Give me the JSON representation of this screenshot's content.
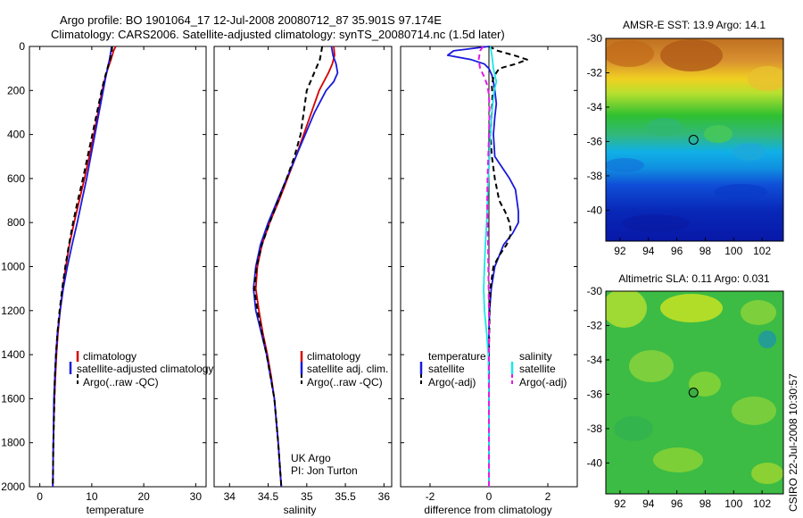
{
  "page": {
    "title_line1": "Argo profile: BO 1901064_17 12-Jul-2008 20080712_87 35.901S 97.174E",
    "title_line2": "Climatology: CARS2006. Satellite-adjusted climatology: synTS_20080714.nc (1.5d later)",
    "credit": "CSIRO 22-Jul-2008 10:30:57",
    "colors": {
      "red": "#d40000",
      "blue": "#1a1adb",
      "black": "#000000",
      "cyan": "#19e6e6",
      "magenta": "#e619e6"
    }
  },
  "chart_data": [
    {
      "type": "line",
      "panel": "temperature",
      "xlabel": "temperature",
      "xlim": [
        -2,
        32
      ],
      "ylim": [
        2000,
        0
      ],
      "xticks": [
        0,
        10,
        20,
        30
      ],
      "yticks": [
        0,
        200,
        400,
        600,
        800,
        1000,
        1200,
        1400,
        1600,
        1800,
        2000
      ],
      "legend": [
        "climatology",
        "satellite-adjusted climatology",
        "Argo(..raw -QC)"
      ],
      "series": [
        {
          "name": "climatology",
          "color": "#d40000",
          "dash": "",
          "depth": [
            0,
            20,
            60,
            100,
            150,
            200,
            300,
            400,
            500,
            600,
            700,
            800,
            900,
            1000,
            1100,
            1200,
            1300,
            1400,
            1500,
            1600,
            1800,
            2000
          ],
          "values": [
            14.6,
            14.2,
            13.7,
            13.1,
            12.5,
            12.0,
            11.2,
            10.4,
            9.5,
            8.6,
            7.6,
            6.6,
            5.7,
            5.0,
            4.4,
            3.9,
            3.5,
            3.2,
            3.0,
            2.8,
            2.6,
            2.5
          ]
        },
        {
          "name": "satellite-adjusted climatology",
          "color": "#1a1adb",
          "dash": "",
          "depth": [
            0,
            20,
            60,
            100,
            150,
            200,
            300,
            400,
            500,
            600,
            700,
            800,
            900,
            1000,
            1100,
            1200,
            1300,
            1400,
            1500,
            1600,
            1800,
            2000
          ],
          "values": [
            13.8,
            13.7,
            13.4,
            13.0,
            12.6,
            12.2,
            11.4,
            10.6,
            9.8,
            9.0,
            8.1,
            7.2,
            6.2,
            5.3,
            4.5,
            3.9,
            3.4,
            3.1,
            2.9,
            2.7,
            2.6,
            2.5
          ]
        },
        {
          "name": "Argo(..raw -QC)",
          "color": "#000000",
          "dash": "6,4",
          "depth": [
            0,
            10,
            30,
            60,
            100,
            150,
            200,
            300,
            400,
            500,
            600,
            700,
            800,
            900,
            1000,
            1100,
            1200,
            1300,
            1400,
            1500,
            1600,
            1800,
            2000
          ],
          "values": [
            13.9,
            13.9,
            13.8,
            13.5,
            13.0,
            12.4,
            11.9,
            11.0,
            10.1,
            9.2,
            8.3,
            7.3,
            6.4,
            5.6,
            4.9,
            4.3,
            3.8,
            3.4,
            3.1,
            2.9,
            2.8,
            2.6,
            2.5
          ]
        }
      ]
    },
    {
      "type": "line",
      "panel": "salinity",
      "xlabel": "salinity",
      "xlim": [
        33.8,
        36.1
      ],
      "ylim": [
        2000,
        0
      ],
      "xticks": [
        34,
        34.5,
        35,
        35.5,
        36
      ],
      "yticks": [
        0,
        200,
        400,
        600,
        800,
        1000,
        1200,
        1400,
        1600,
        1800,
        2000
      ],
      "legend": [
        "climatology",
        "satellite adj. clim.",
        "Argo(..raw -QC)"
      ],
      "series": [
        {
          "name": "climatology",
          "color": "#d40000",
          "dash": "",
          "depth": [
            0,
            40,
            80,
            120,
            160,
            200,
            300,
            400,
            500,
            600,
            700,
            800,
            900,
            1000,
            1100,
            1200,
            1300,
            1400,
            1500,
            1600,
            1800,
            2000
          ],
          "values": [
            35.35,
            35.36,
            35.33,
            35.28,
            35.22,
            35.16,
            35.06,
            34.96,
            34.86,
            34.75,
            34.64,
            34.52,
            34.42,
            34.36,
            34.34,
            34.38,
            34.43,
            34.49,
            34.54,
            34.58,
            34.63,
            34.67
          ]
        },
        {
          "name": "satellite adj. clim.",
          "color": "#1a1adb",
          "dash": "",
          "depth": [
            0,
            40,
            80,
            120,
            160,
            200,
            300,
            400,
            500,
            600,
            700,
            800,
            900,
            1000,
            1100,
            1200,
            1300,
            1400,
            1500,
            1600,
            1800,
            2000
          ],
          "values": [
            35.32,
            35.34,
            35.38,
            35.4,
            35.35,
            35.25,
            35.1,
            34.98,
            34.86,
            34.74,
            34.62,
            34.5,
            34.4,
            34.34,
            34.31,
            34.34,
            34.41,
            34.48,
            34.53,
            34.58,
            34.63,
            34.67
          ]
        },
        {
          "name": "Argo(..raw -QC)",
          "color": "#000000",
          "dash": "6,4",
          "depth": [
            0,
            20,
            60,
            100,
            150,
            200,
            300,
            400,
            500,
            600,
            700,
            800,
            900,
            1000,
            1100,
            1200,
            1300,
            1400,
            1500,
            1600,
            1800,
            2000
          ],
          "values": [
            35.2,
            35.19,
            35.17,
            35.12,
            35.06,
            35.0,
            34.96,
            34.92,
            34.84,
            34.74,
            34.63,
            34.52,
            34.42,
            34.35,
            34.32,
            34.36,
            34.42,
            34.48,
            34.53,
            34.58,
            34.63,
            34.67
          ]
        }
      ]
    },
    {
      "type": "line",
      "panel": "difference",
      "xlabel": "difference from climatology",
      "xlim": [
        -3,
        3
      ],
      "ylim": [
        2000,
        0
      ],
      "xticks": [
        -2,
        0,
        2
      ],
      "yticks": [
        0,
        200,
        400,
        600,
        800,
        1000,
        1200,
        1400,
        1600,
        1800,
        2000
      ],
      "legend_left_heading": "temperature",
      "legend_right_heading": "salinity",
      "legend": [
        "satellite",
        "Argo(-adj)",
        "satellite",
        "Argo(-adj)"
      ],
      "series": [
        {
          "name": "satellite",
          "group": "temperature",
          "color": "#1a1adb",
          "dash": "",
          "depth": [
            0,
            20,
            40,
            60,
            80,
            100,
            130,
            160,
            200,
            260,
            320,
            400,
            500,
            550,
            600,
            650,
            700,
            750,
            800,
            850,
            900,
            1000,
            1100,
            1200,
            1300,
            1400,
            1600,
            1800,
            2000
          ],
          "values": [
            0,
            -1.2,
            -1.4,
            -0.6,
            -0.15,
            0,
            0.1,
            0.15,
            0.2,
            0.25,
            0.2,
            0.15,
            0.2,
            0.45,
            0.7,
            0.9,
            0.95,
            1.0,
            1.0,
            0.8,
            0.5,
            0.2,
            0.08,
            0.02,
            0,
            0,
            0,
            0,
            0
          ]
        },
        {
          "name": "Argo(-adj)",
          "group": "temperature",
          "color": "#000000",
          "dash": "6,4",
          "depth": [
            0,
            20,
            40,
            60,
            80,
            100,
            140,
            180,
            220,
            300,
            400,
            500,
            600,
            700,
            750,
            800,
            850,
            900,
            950,
            1000,
            1100,
            1200,
            1400,
            1600,
            1800,
            2000
          ],
          "values": [
            0,
            0.3,
            0.85,
            1.3,
            0.9,
            0.35,
            0.15,
            0.1,
            0.12,
            0.1,
            0.05,
            0.1,
            0.2,
            0.35,
            0.55,
            0.7,
            0.75,
            0.6,
            0.35,
            0.15,
            0.05,
            0.02,
            0,
            0,
            0,
            0
          ]
        },
        {
          "name": "satellite",
          "group": "salinity",
          "color": "#19e6e6",
          "dash": "",
          "depth": [
            0,
            40,
            100,
            160,
            200,
            300,
            400,
            500,
            600,
            700,
            800,
            900,
            1000,
            1100,
            1200,
            1300,
            1400,
            1600,
            1800,
            2000
          ],
          "values": [
            0.05,
            0.1,
            0.15,
            0.25,
            0.18,
            0.1,
            0.05,
            0.02,
            -0.02,
            -0.05,
            -0.08,
            -0.12,
            -0.15,
            -0.18,
            -0.15,
            -0.08,
            -0.02,
            0,
            0,
            0
          ]
        },
        {
          "name": "Argo(-adj)",
          "group": "salinity",
          "color": "#e619e6",
          "dash": "6,4",
          "depth": [
            0,
            20,
            60,
            100,
            140,
            180,
            220,
            300,
            400,
            500,
            600,
            700,
            800,
            900,
            1000,
            1200,
            1400,
            1600,
            1800,
            2000
          ],
          "values": [
            -0.2,
            -0.3,
            -0.35,
            -0.3,
            -0.15,
            -0.05,
            0,
            0.02,
            0,
            -0.02,
            -0.05,
            -0.06,
            -0.05,
            -0.03,
            -0.02,
            0,
            0,
            0,
            0,
            0
          ]
        }
      ]
    },
    {
      "type": "heatmap",
      "panel": "sst-map",
      "title": "AMSR-E SST: 13.9 Argo: 14.1",
      "xlim": [
        91,
        103.5
      ],
      "ylim": [
        -41.8,
        -30
      ],
      "xticks": [
        92,
        94,
        96,
        98,
        100,
        102
      ],
      "yticks": [
        -30,
        -32,
        -34,
        -36,
        -38,
        -40
      ],
      "marker": {
        "lon": 97.174,
        "lat": -35.901
      }
    },
    {
      "type": "heatmap",
      "panel": "sla-map",
      "title": "Altimetric SLA: 0.11 Argo: 0.031",
      "xlim": [
        91,
        103.5
      ],
      "ylim": [
        -41.8,
        -30
      ],
      "xticks": [
        92,
        94,
        96,
        98,
        100,
        102
      ],
      "yticks": [
        -30,
        -32,
        -34,
        -36,
        -38,
        -40
      ],
      "marker": {
        "lon": 97.174,
        "lat": -35.901
      }
    }
  ],
  "annotations": {
    "line1": "UK Argo",
    "line2": "PI: Jon Turton"
  }
}
